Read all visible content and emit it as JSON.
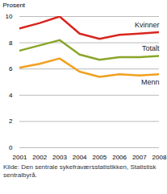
{
  "chart_data": {
    "type": "line",
    "y_label": "Prosent",
    "caption": "Kilde: Den sentrale sykefraværsstatistikken, Statistisk sentralbyrå.",
    "x": [
      2001,
      2002,
      2003,
      2004,
      2005,
      2006,
      2007,
      2008
    ],
    "xlim": [
      2001,
      2008
    ],
    "xticks": [
      2001,
      2002,
      2003,
      2004,
      2005,
      2006,
      2007,
      2008
    ],
    "ylim": [
      0,
      10
    ],
    "yticks": [
      0,
      2,
      4,
      6,
      8,
      10
    ],
    "grid": true,
    "series": [
      {
        "name": "Kvinner",
        "color": "#d7261e",
        "values": [
          9.1,
          9.5,
          10.0,
          8.7,
          8.3,
          8.6,
          8.7,
          8.8
        ]
      },
      {
        "name": "Totalt",
        "color": "#8aa529",
        "values": [
          7.4,
          7.8,
          8.2,
          7.1,
          6.7,
          6.9,
          6.9,
          7.0
        ]
      },
      {
        "name": "Menn",
        "color": "#f0a01e",
        "values": [
          6.1,
          6.4,
          6.8,
          5.8,
          5.4,
          5.6,
          5.5,
          5.6
        ]
      }
    ]
  }
}
